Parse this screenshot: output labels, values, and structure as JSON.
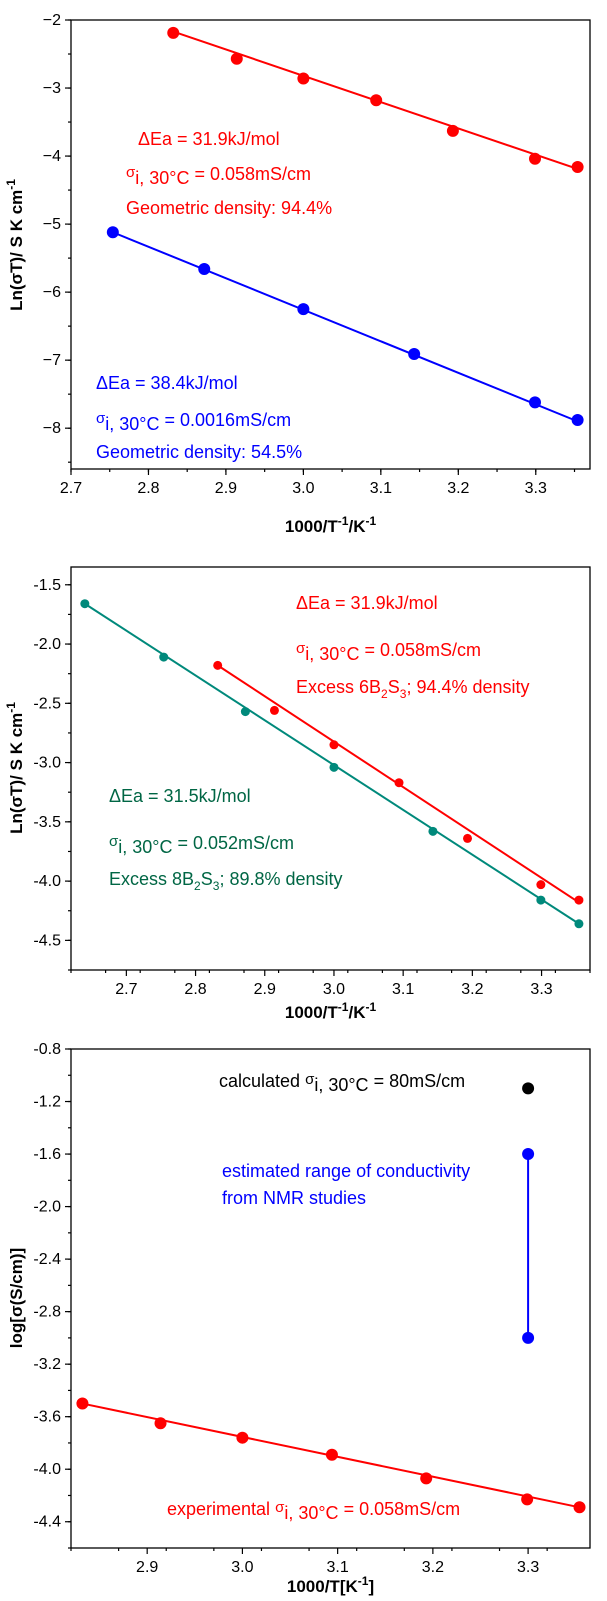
{
  "chart_data": [
    {
      "type": "scatter",
      "xlabel": "1000/T",
      "xlabel_sup": "-1",
      "xlabel_suffix": "/K",
      "xlabel_sup2": "-1",
      "ylabel": "Ln(σT)/ S K cm",
      "ylabel_sup": "-1",
      "xlim": [
        2.7,
        3.37
      ],
      "ylim": [
        -8.6,
        -2.0
      ],
      "xticks": [
        "2.7",
        "2.8",
        "2.9",
        "3.0",
        "3.1",
        "3.2",
        "3.3"
      ],
      "yticks": [
        "−2",
        "−3",
        "−4",
        "−5",
        "−6",
        "−7",
        "−8"
      ],
      "series": [
        {
          "color": "#ff0000",
          "x": [
            2.832,
            2.914,
            3.0,
            3.094,
            3.193,
            3.299,
            3.354
          ],
          "y": [
            -2.19,
            -2.57,
            -2.86,
            -3.18,
            -3.63,
            -4.04,
            -4.16
          ],
          "fit": [
            [
              2.832,
              -2.17
            ],
            [
              3.354,
              -4.19
            ]
          ]
        },
        {
          "color": "#0000ff",
          "x": [
            2.754,
            2.872,
            3.0,
            3.143,
            3.299,
            3.354
          ],
          "y": [
            -5.12,
            -5.66,
            -6.25,
            -6.91,
            -7.62,
            -7.88
          ],
          "fit": [
            [
              2.754,
              -5.12
            ],
            [
              3.354,
              -7.9
            ]
          ]
        }
      ],
      "annotations": [
        {
          "color": "#ff0000",
          "text": "ΔEa = 31.9kJ/mol"
        },
        {
          "color": "#ff0000",
          "text": "σ",
          "sub": "i, 30°C",
          "rest": " = 0.058mS/cm"
        },
        {
          "color": "#ff0000",
          "text": "Geometric density: 94.4%"
        },
        {
          "color": "#0000ff",
          "text": "ΔEa = 38.4kJ/mol"
        },
        {
          "color": "#0000ff",
          "text": "σ",
          "sub": "i, 30°C",
          "rest": " = 0.0016mS/cm"
        },
        {
          "color": "#0000ff",
          "text": "Geometric density: 54.5%"
        }
      ]
    },
    {
      "type": "scatter",
      "xlabel": "1000/T",
      "xlabel_sup": "-1",
      "xlabel_suffix": "/K",
      "xlabel_sup2": "-1",
      "ylabel": "Ln(σT)/ S K cm",
      "ylabel_sup": "-1",
      "xlim": [
        2.62,
        3.37
      ],
      "ylim": [
        -4.75,
        -1.35
      ],
      "xticks": [
        "2.7",
        "2.8",
        "2.9",
        "3.0",
        "3.1",
        "3.2",
        "3.3"
      ],
      "yticks": [
        "-1.5",
        "-2.0",
        "-2.5",
        "-3.0",
        "-3.5",
        "-4.0",
        "-4.5"
      ],
      "series": [
        {
          "color": "#ff0000",
          "x": [
            2.832,
            2.914,
            3.0,
            3.094,
            3.193,
            3.299,
            3.354
          ],
          "y": [
            -2.18,
            -2.56,
            -2.85,
            -3.17,
            -3.64,
            -4.03,
            -4.16
          ],
          "fit": [
            [
              2.832,
              -2.18
            ],
            [
              3.354,
              -4.18
            ]
          ]
        },
        {
          "color": "#00897b",
          "x": [
            2.64,
            2.754,
            2.872,
            3.0,
            3.143,
            3.299,
            3.354
          ],
          "y": [
            -1.66,
            -2.11,
            -2.57,
            -3.04,
            -3.58,
            -4.16,
            -4.36
          ],
          "fit": [
            [
              2.64,
              -1.66
            ],
            [
              3.354,
              -4.36
            ]
          ]
        }
      ],
      "annotations": [
        {
          "color": "#ff0000",
          "text": "ΔEa = 31.9kJ/mol"
        },
        {
          "color": "#ff0000",
          "text": "σ",
          "sub": "i, 30°C",
          "rest": " = 0.058mS/cm"
        },
        {
          "color": "#ff0000",
          "text": "Excess 6B",
          "sub2": "2",
          "mid": "S",
          "sub3": "3",
          "rest": "; 94.4% density"
        },
        {
          "color": "#006644",
          "text": "ΔEa = 31.5kJ/mol"
        },
        {
          "color": "#006644",
          "text": "σ",
          "sub": "i, 30°C",
          "rest": " = 0.052mS/cm"
        },
        {
          "color": "#006644",
          "text": "Excess 8B",
          "sub2": "2",
          "mid": "S",
          "sub3": "3",
          "rest": "; 89.8% density"
        }
      ]
    },
    {
      "type": "scatter",
      "xlabel": "1000/T[K",
      "xlabel_sup": "-1",
      "xlabel_suffix": "]",
      "ylabel": "log[σ(S/cm)]",
      "xlim": [
        2.82,
        3.365
      ],
      "ylim": [
        -4.6,
        -0.8
      ],
      "xticks": [
        "2.9",
        "3.0",
        "3.1",
        "3.2",
        "3.3"
      ],
      "yticks": [
        "-0.8",
        "-1.2",
        "-1.6",
        "-2.0",
        "-2.4",
        "-2.8",
        "-3.2",
        "-3.6",
        "-4.0",
        "-4.4"
      ],
      "series": [
        {
          "color": "#ff0000",
          "x": [
            2.832,
            2.914,
            3.0,
            3.094,
            3.193,
            3.299,
            3.354
          ],
          "y": [
            -3.5,
            -3.65,
            -3.76,
            -3.89,
            -4.07,
            -4.23,
            -4.29
          ],
          "fit": [
            [
              2.832,
              -3.5
            ],
            [
              3.354,
              -4.29
            ]
          ]
        },
        {
          "color": "#0000ff",
          "x": [
            3.3,
            3.3
          ],
          "y": [
            -1.6,
            -3.0
          ],
          "fit": [
            [
              3.3,
              -1.6
            ],
            [
              3.3,
              -3.0
            ]
          ]
        },
        {
          "color": "#000000",
          "x": [
            3.3
          ],
          "y": [
            -1.1
          ],
          "fit": []
        }
      ],
      "annotations": [
        {
          "color": "#000000",
          "text": "calculated ",
          "sym": "σ",
          "sub": "i, 30°C",
          "rest": " = 80mS/cm"
        },
        {
          "color": "#0000ff",
          "text": "estimated range of conductivity"
        },
        {
          "color": "#0000ff",
          "text": "from NMR studies"
        },
        {
          "color": "#ff0000",
          "text": "experimental ",
          "sym": "σ",
          "sub": "i, 30°C",
          "rest": " = 0.058mS/cm"
        }
      ]
    }
  ]
}
